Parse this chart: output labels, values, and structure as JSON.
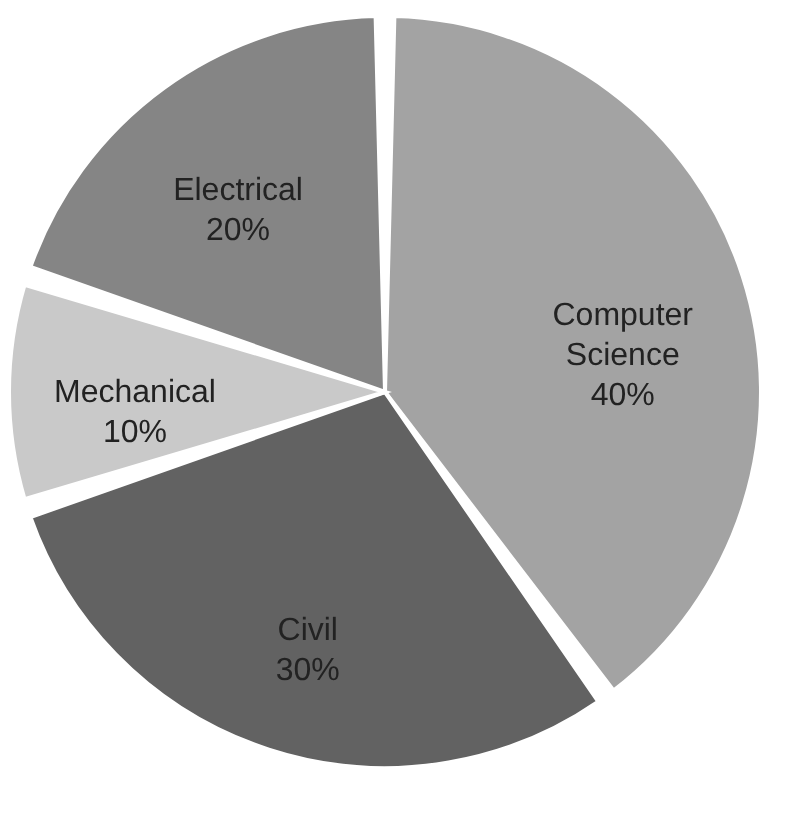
{
  "chart_data": {
    "type": "pie",
    "categories": [
      "Computer Science",
      "Civil",
      "Mechanical",
      "Electrical"
    ],
    "values": [
      40,
      30,
      10,
      20
    ],
    "value_labels": [
      "40%",
      "30%",
      "10%",
      "20%"
    ],
    "colors": [
      "#a3a3a3",
      "#626262",
      "#c9c9c9",
      "#858585"
    ],
    "legend": false
  }
}
